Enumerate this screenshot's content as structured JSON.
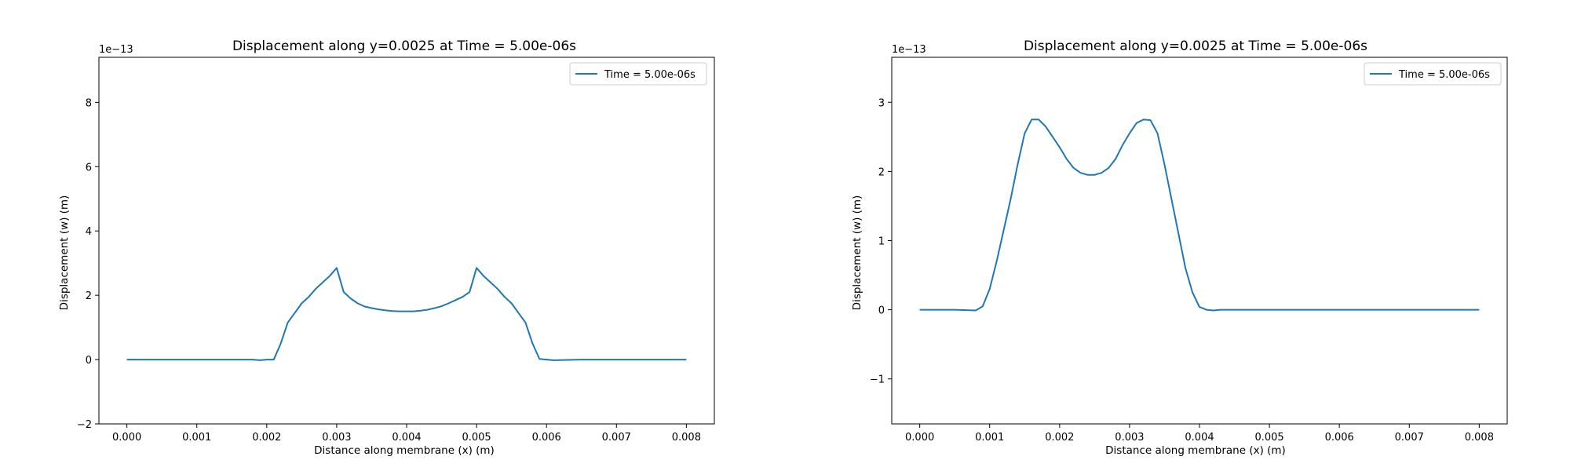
{
  "chart_data": [
    {
      "type": "line",
      "title": "Displacement along y=0.0025 at Time = 5.00e-06s",
      "xlabel": "Distance along membrane (x) (m)",
      "ylabel": "Displacement (w) (m)",
      "y_offset_label": "1e−13",
      "xlim": [
        -0.0004,
        0.0084
      ],
      "ylim": [
        -2,
        9.4
      ],
      "xticks": [
        0.0,
        0.001,
        0.002,
        0.003,
        0.004,
        0.005,
        0.006,
        0.007,
        0.008
      ],
      "xtick_labels": [
        "0.000",
        "0.001",
        "0.002",
        "0.003",
        "0.004",
        "0.005",
        "0.006",
        "0.007",
        "0.008"
      ],
      "yticks": [
        -2,
        0,
        2,
        4,
        6,
        8
      ],
      "ytick_labels": [
        "−2",
        "0",
        "2",
        "4",
        "6",
        "8"
      ],
      "grid": false,
      "legend_position": "top-right",
      "color": "#1f77b4",
      "series": [
        {
          "name": "Time = 5.00e-06s",
          "x": [
            0.0,
            0.0005,
            0.001,
            0.0015,
            0.0018,
            0.0019,
            0.002,
            0.0021,
            0.0022,
            0.0023,
            0.0024,
            0.0025,
            0.0026,
            0.0027,
            0.0028,
            0.0029,
            0.003,
            0.0031,
            0.0032,
            0.0033,
            0.0034,
            0.0035,
            0.0036,
            0.0037,
            0.0038,
            0.0039,
            0.004,
            0.0041,
            0.0042,
            0.0043,
            0.0044,
            0.0045,
            0.0046,
            0.0047,
            0.0048,
            0.0049,
            0.005,
            0.0051,
            0.0052,
            0.0053,
            0.0054,
            0.0055,
            0.0056,
            0.0057,
            0.0058,
            0.0059,
            0.006,
            0.0061,
            0.0065,
            0.007,
            0.0075,
            0.008
          ],
          "y": [
            0.0,
            0.0,
            0.0,
            0.0,
            0.0,
            -0.02,
            0.0,
            0.0,
            0.5,
            1.15,
            1.45,
            1.75,
            1.95,
            2.2,
            2.4,
            2.6,
            2.85,
            2.1,
            1.9,
            1.75,
            1.65,
            1.6,
            1.56,
            1.53,
            1.51,
            1.5,
            1.5,
            1.5,
            1.52,
            1.55,
            1.6,
            1.66,
            1.75,
            1.85,
            1.95,
            2.1,
            2.85,
            2.6,
            2.4,
            2.2,
            1.95,
            1.75,
            1.45,
            1.15,
            0.5,
            0.02,
            0.0,
            -0.02,
            0.0,
            0.0,
            0.0,
            0.0
          ]
        }
      ]
    },
    {
      "type": "line",
      "title": "Displacement along y=0.0025 at Time = 5.00e-06s",
      "xlabel": "Distance along membrane (x) (m)",
      "ylabel": "Displacement (w) (m)",
      "y_offset_label": "1e−13",
      "xlim": [
        -0.0004,
        0.0084
      ],
      "ylim": [
        -1.65,
        3.65
      ],
      "xticks": [
        0.0,
        0.001,
        0.002,
        0.003,
        0.004,
        0.005,
        0.006,
        0.007,
        0.008
      ],
      "xtick_labels": [
        "0.000",
        "0.001",
        "0.002",
        "0.003",
        "0.004",
        "0.005",
        "0.006",
        "0.007",
        "0.008"
      ],
      "yticks": [
        -1,
        0,
        1,
        2,
        3
      ],
      "ytick_labels": [
        "−1",
        "0",
        "1",
        "2",
        "3"
      ],
      "grid": false,
      "legend_position": "top-right",
      "color": "#1f77b4",
      "series": [
        {
          "name": "Time = 5.00e-06s",
          "x": [
            0.0,
            0.0005,
            0.0008,
            0.0009,
            0.001,
            0.0011,
            0.0012,
            0.0013,
            0.0014,
            0.0015,
            0.0016,
            0.0017,
            0.0018,
            0.0019,
            0.002,
            0.0021,
            0.0022,
            0.0023,
            0.0024,
            0.0025,
            0.0026,
            0.0027,
            0.0028,
            0.0029,
            0.003,
            0.0031,
            0.0032,
            0.0033,
            0.0034,
            0.0035,
            0.0036,
            0.0037,
            0.0038,
            0.0039,
            0.004,
            0.0041,
            0.0042,
            0.0043,
            0.0044,
            0.0045,
            0.0046,
            0.005,
            0.006,
            0.007,
            0.008
          ],
          "y": [
            0.0,
            0.0,
            -0.01,
            0.05,
            0.3,
            0.7,
            1.15,
            1.6,
            2.1,
            2.55,
            2.75,
            2.75,
            2.65,
            2.5,
            2.35,
            2.18,
            2.05,
            1.98,
            1.95,
            1.95,
            1.98,
            2.05,
            2.18,
            2.38,
            2.55,
            2.7,
            2.75,
            2.74,
            2.55,
            2.1,
            1.6,
            1.1,
            0.6,
            0.25,
            0.04,
            0.0,
            -0.01,
            0.0,
            0.0,
            0.0,
            0.0,
            0.0,
            0.0,
            0.0,
            0.0
          ]
        }
      ]
    }
  ]
}
